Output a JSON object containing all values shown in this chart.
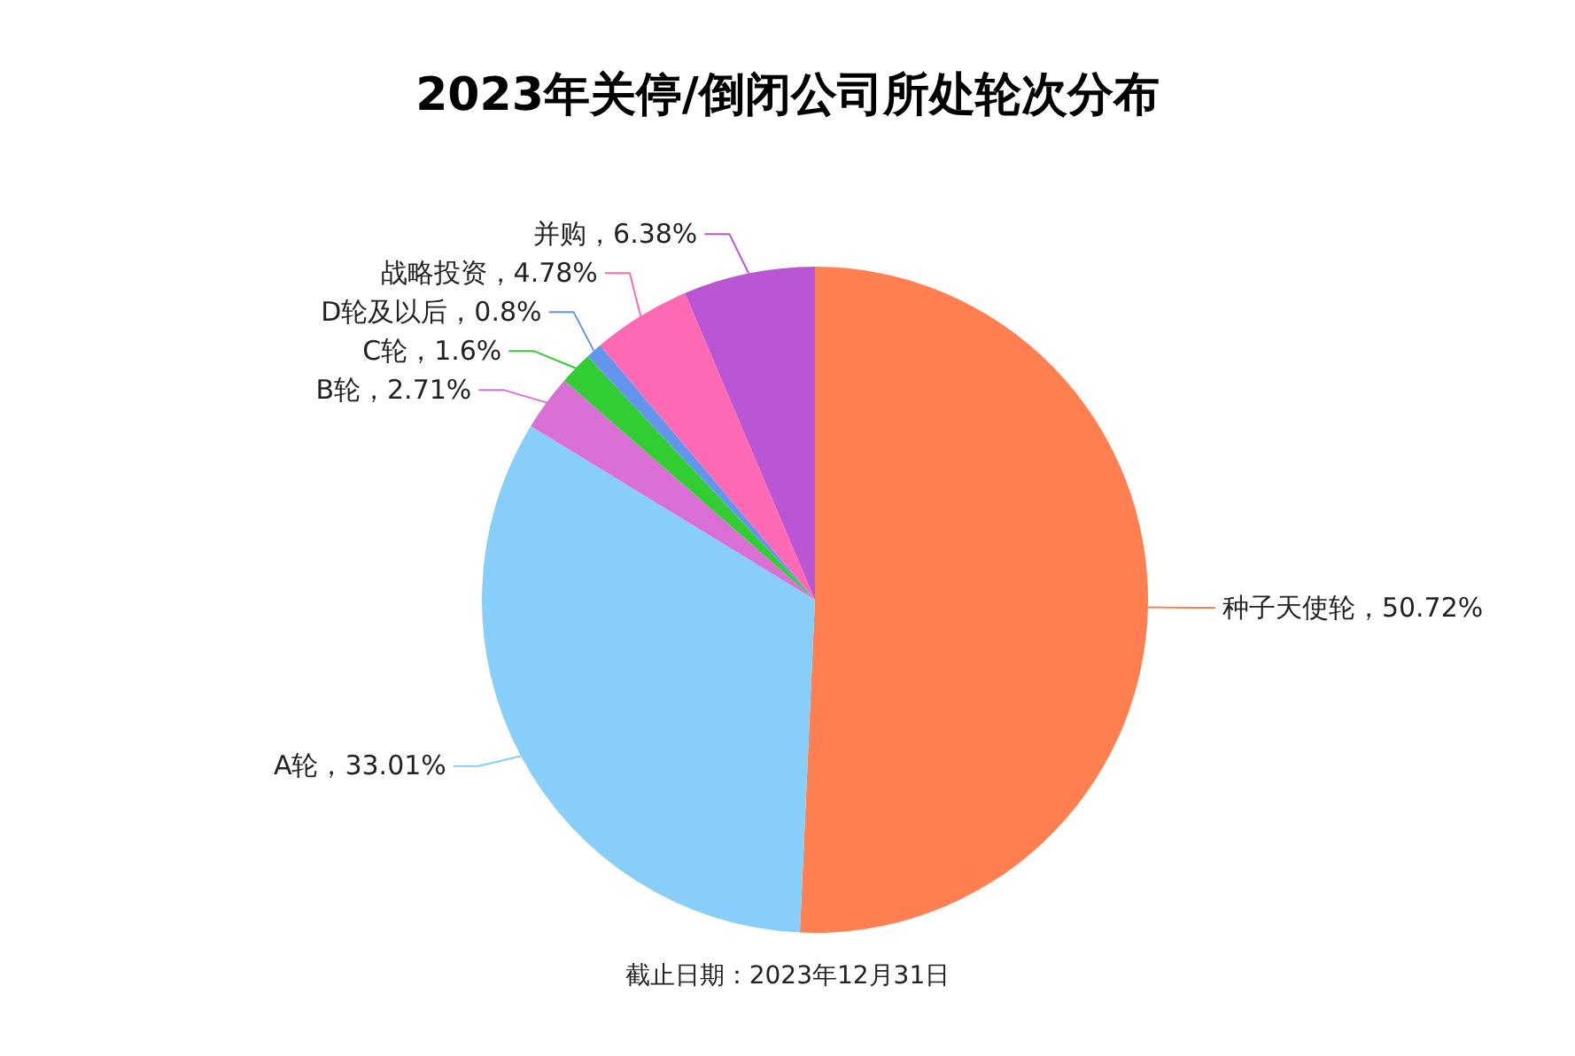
{
  "chart_data": {
    "type": "pie",
    "title": "2023年关停/倒闭公司所处轮次分布",
    "categories": [
      "种子天使轮",
      "A轮",
      "B轮",
      "C轮",
      "D轮及以后",
      "战略投资",
      "并购"
    ],
    "values": [
      50.72,
      33.01,
      2.71,
      1.6,
      0.8,
      4.78,
      6.38
    ],
    "value_labels": [
      "50.72%",
      "33.01%",
      "2.71%",
      "1.6%",
      "0.8%",
      "4.78%",
      "6.38%"
    ],
    "colors": [
      "#ff7f50",
      "#87cefa",
      "#da70d6",
      "#32cd32",
      "#6495ed",
      "#ff69b4",
      "#ba55d3"
    ],
    "annotations": [
      "截止日期：2023年12月31日"
    ]
  }
}
